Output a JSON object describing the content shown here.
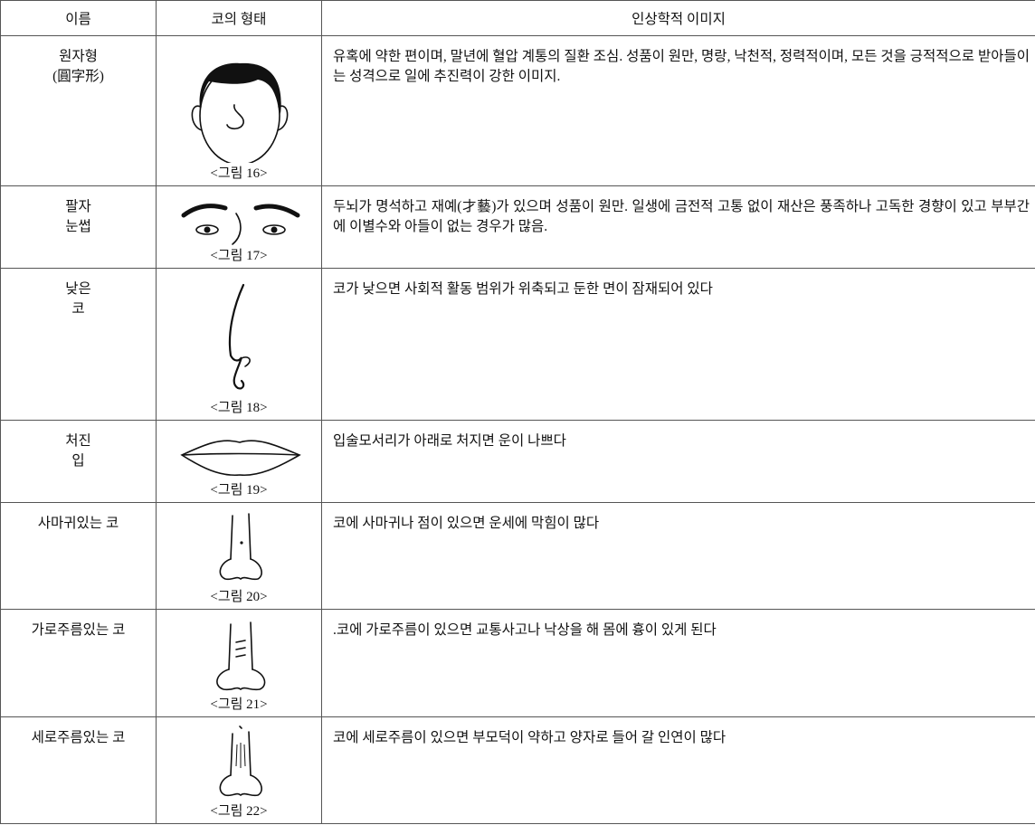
{
  "table": {
    "header": [
      "이름",
      "코의 형태",
      "인상학적 이미지"
    ],
    "rows": [
      {
        "name_lines": [
          "원자형",
          "(圓字形)"
        ],
        "caption": "<그림 16>",
        "description": "유혹에 약한 편이며, 말년에 혈압 계통의 질환 조심. 성품이 원만, 명랑, 낙천적, 정력적이며, 모든 것을 긍적적으로 받아들이는 성격으로 일에 추진력이 강한 이미지."
      },
      {
        "name_lines": [
          "팔자",
          "눈썹"
        ],
        "caption": "<그림 17>",
        "description": "두뇌가 명석하고 재예(才藝)가 있으며 성품이 원만. 일생에 금전적 고통 없이 재산은 풍족하나 고독한 경향이 있고 부부간에 이별수와 아들이 없는 경우가 많음."
      },
      {
        "name_lines": [
          "낮은",
          "코"
        ],
        "caption": "<그림 18>",
        "description": "코가 낮으면 사회적 활동 범위가 위축되고 둔한 면이 잠재되어 있다"
      },
      {
        "name_lines": [
          "처진",
          "입"
        ],
        "caption": "<그림 19>",
        "description": "입술모서리가 아래로 처지면 운이 나쁘다"
      },
      {
        "name_lines": [
          "사마귀있는 코"
        ],
        "caption": "<그림 20>",
        "description": "코에 사마귀나 점이 있으면 운세에 막힘이 많다"
      },
      {
        "name_lines": [
          "가로주름있는 코"
        ],
        "caption": "<그림 21>",
        "description": ".코에 가로주름이 있으면 교통사고나 낙상을 해 몸에 흉이 있게 된다"
      },
      {
        "name_lines": [
          "세로주름있는 코"
        ],
        "caption": "<그림 22>",
        "description": "코에 세로주름이 있으면 부모덕이 약하고 양자로 들어 갈 인연이 많다"
      }
    ]
  }
}
